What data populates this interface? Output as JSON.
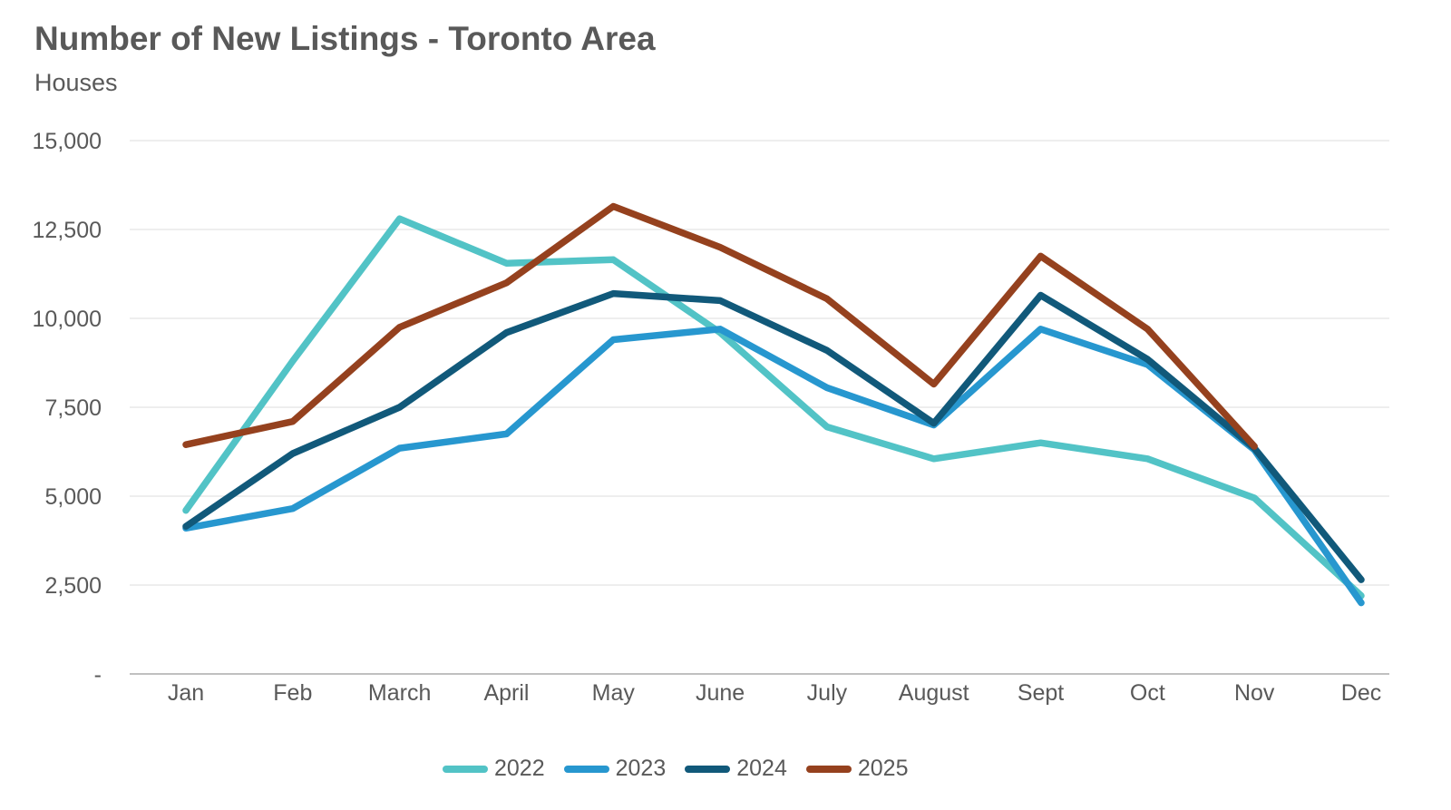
{
  "title": "Number of New Listings - Toronto Area",
  "subtitle": "Houses",
  "chart_data": {
    "type": "line",
    "categories": [
      "Jan",
      "Feb",
      "March",
      "April",
      "May",
      "June",
      "July",
      "August",
      "Sept",
      "Oct",
      "Nov",
      "Dec"
    ],
    "series": [
      {
        "name": "2022",
        "color": "#52C3C6",
        "values": [
          4600,
          8800,
          12800,
          11550,
          11650,
          9600,
          6950,
          6050,
          6500,
          6050,
          4950,
          2200
        ]
      },
      {
        "name": "2023",
        "color": "#2797CF",
        "values": [
          4100,
          4650,
          6350,
          6750,
          9400,
          9700,
          8050,
          7000,
          9700,
          8700,
          6300,
          2000
        ]
      },
      {
        "name": "2024",
        "color": "#11597A",
        "values": [
          4150,
          6200,
          7500,
          9600,
          10700,
          10500,
          9100,
          7050,
          10650,
          8850,
          6350,
          2650
        ]
      },
      {
        "name": "2025",
        "color": "#95411E",
        "values": [
          6450,
          7100,
          9750,
          11000,
          13150,
          12000,
          10550,
          8150,
          11750,
          9700,
          6400,
          null
        ]
      }
    ],
    "ylim": [
      0,
      15000
    ],
    "ytick_step": 2500,
    "ytick_labels": [
      "-",
      "2,500",
      "5,000",
      "7,500",
      "10,000",
      "12,500",
      "15,000"
    ],
    "grid": "horizontal",
    "legend_position": "bottom",
    "grid_color": "#E8E8E8",
    "zero_line_color": "#C0C0C0",
    "axis_text_color": "#595959"
  }
}
